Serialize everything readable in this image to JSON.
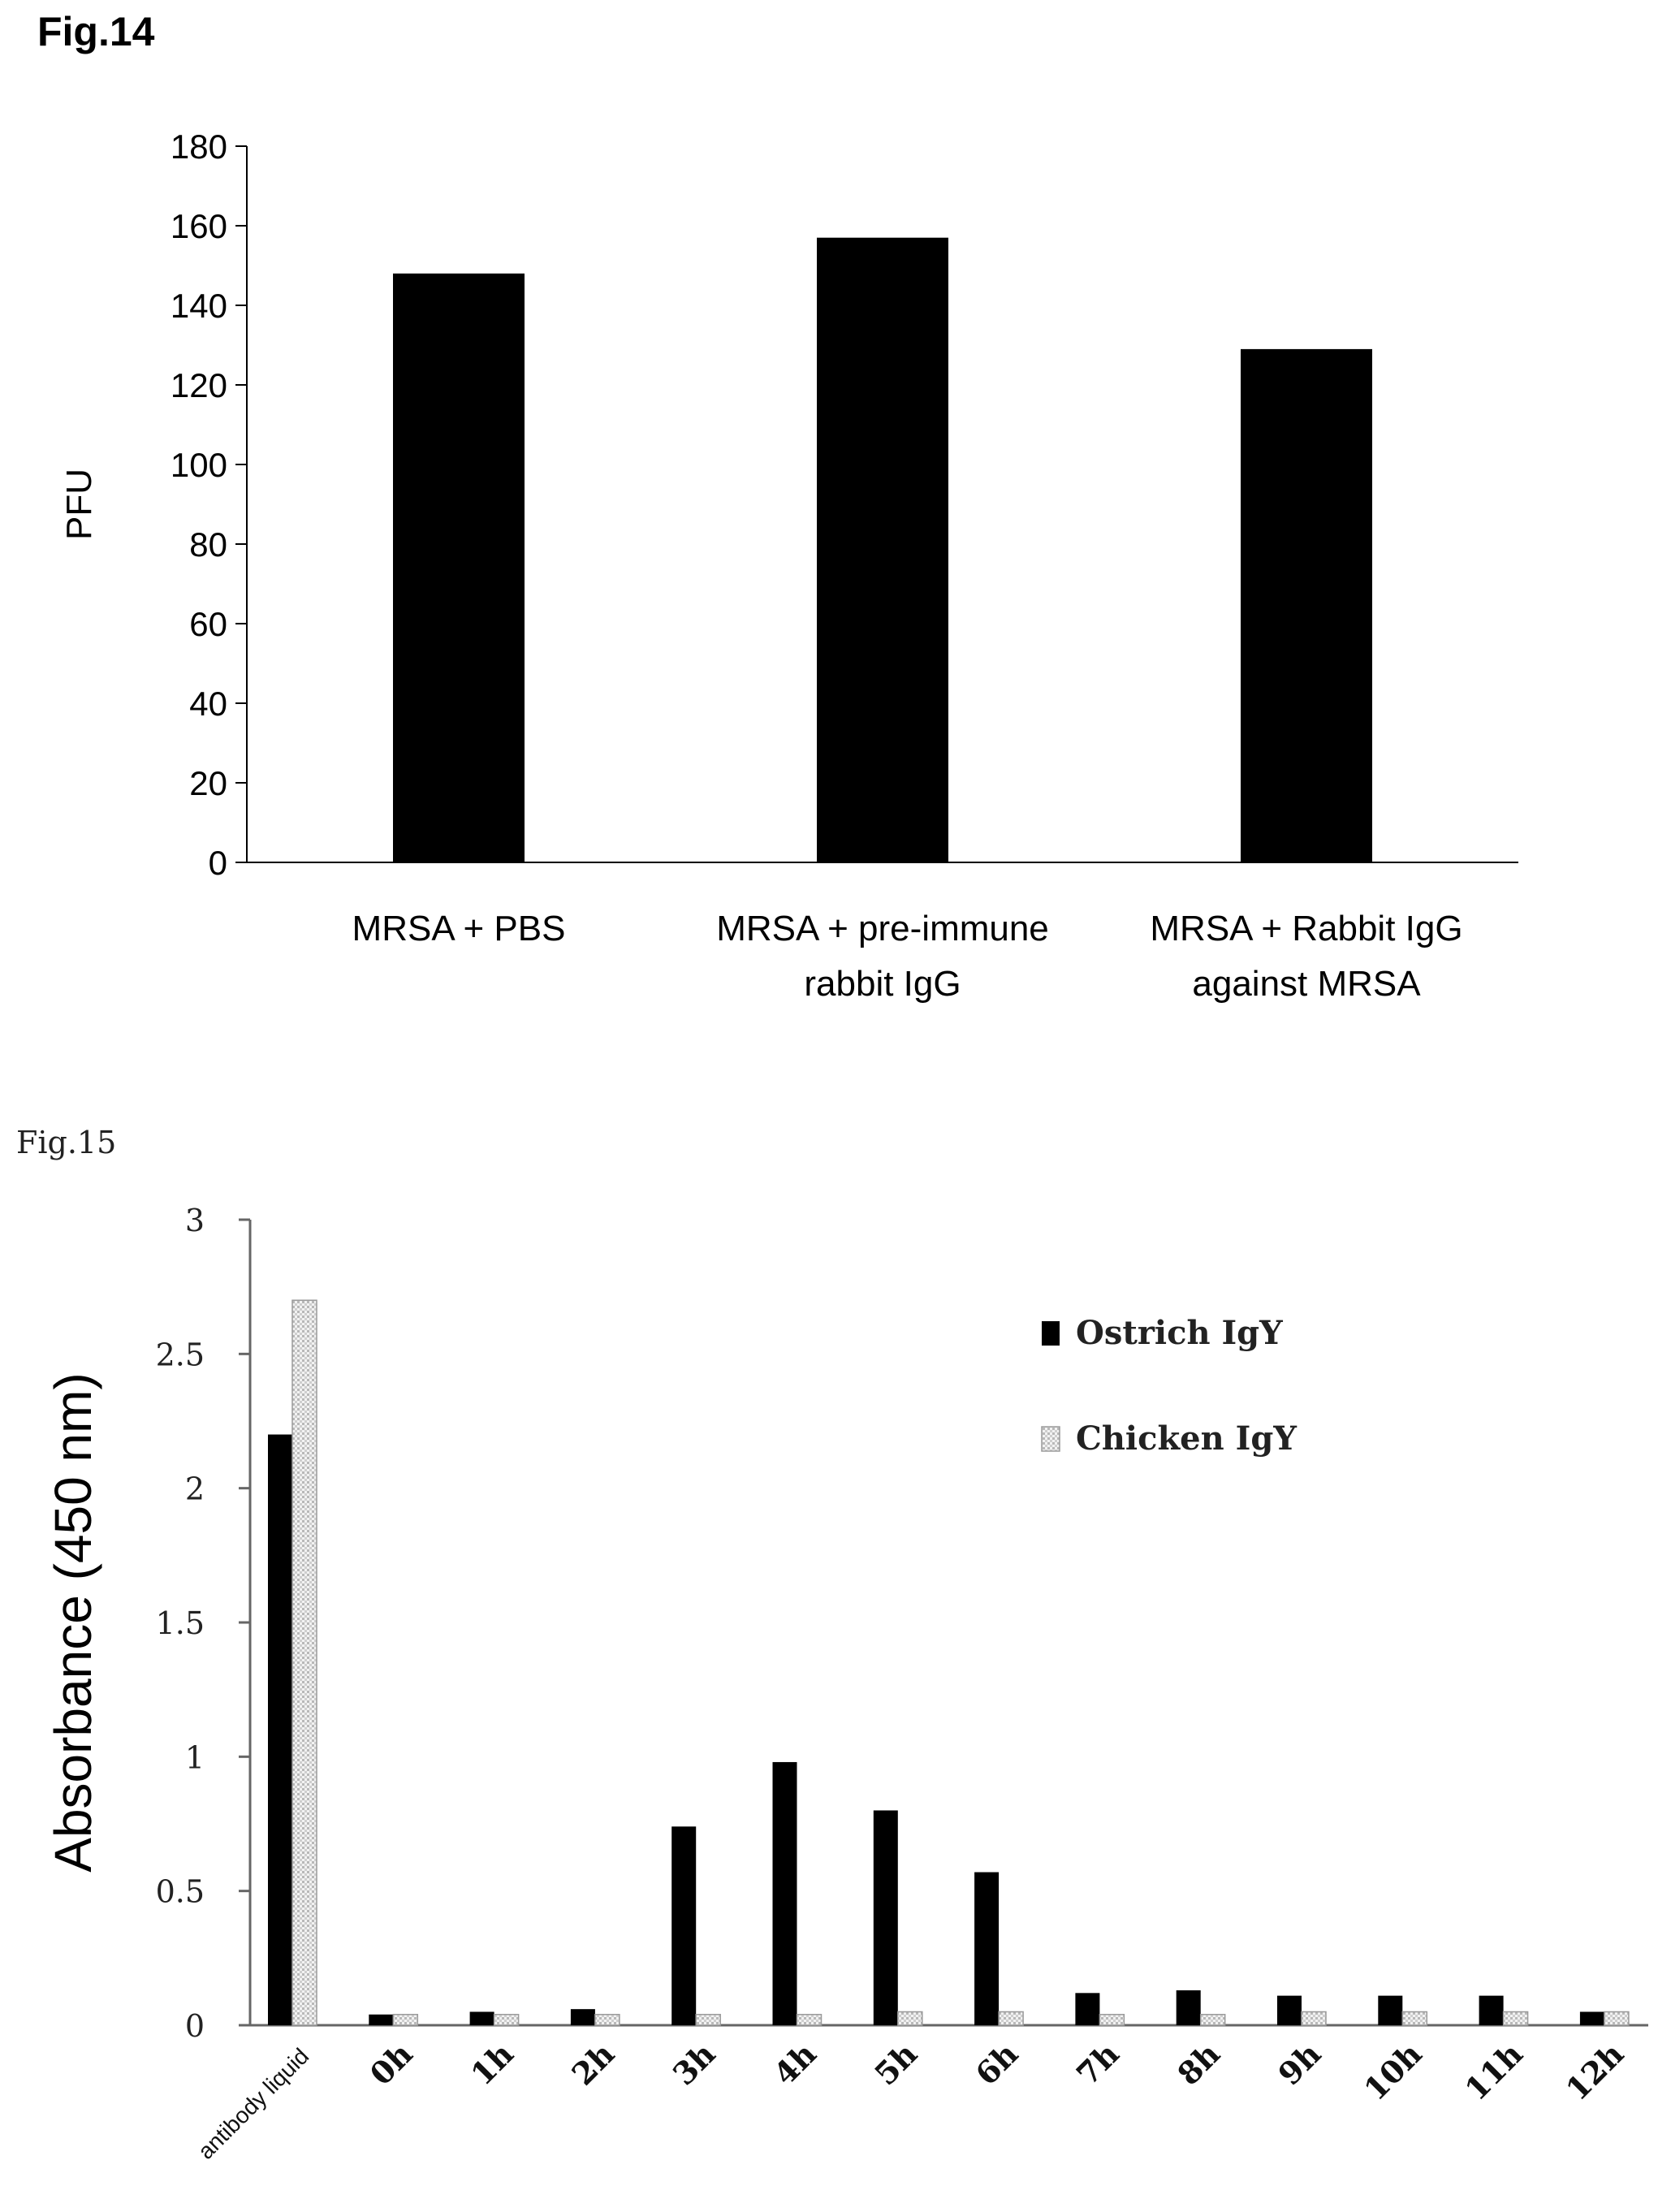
{
  "figures": {
    "fig14_label": "Fig.14",
    "fig15_label": "Fig.15"
  },
  "chart_data": [
    {
      "type": "bar",
      "title": "",
      "ylabel": "PFU",
      "xlabel": "",
      "ylim": [
        0,
        180
      ],
      "yticks": [
        0,
        20,
        40,
        60,
        80,
        100,
        120,
        140,
        160,
        180
      ],
      "categories": [
        [
          "MRSA + PBS"
        ],
        [
          "MRSA + pre-immune",
          "rabbit IgG"
        ],
        [
          "MRSA + Rabbit IgG",
          "against MRSA"
        ]
      ],
      "values": [
        148,
        157,
        129
      ],
      "bar_color": "#000000",
      "grid": false,
      "legend": "none"
    },
    {
      "type": "bar",
      "title": "",
      "ylabel": "Absorbance (450 nm)",
      "xlabel": "",
      "ylim": [
        0,
        3
      ],
      "yticks": [
        "0",
        "0.5",
        "1",
        "1.5",
        "2",
        "2.5",
        "3"
      ],
      "categories": [
        "antibody liquid",
        "0h",
        "1h",
        "2h",
        "3h",
        "4h",
        "5h",
        "6h",
        "7h",
        "8h",
        "9h",
        "10h",
        "11h",
        "12h"
      ],
      "series": [
        {
          "name": "Ostrich IgY",
          "color": "#000000",
          "values": [
            2.2,
            0.04,
            0.05,
            0.06,
            0.74,
            0.98,
            0.8,
            0.57,
            0.12,
            0.13,
            0.11,
            0.11,
            0.11,
            0.05
          ]
        },
        {
          "name": "Chicken IgY",
          "color": "#e0e0e0",
          "values": [
            2.7,
            0.04,
            0.04,
            0.04,
            0.04,
            0.04,
            0.05,
            0.05,
            0.04,
            0.04,
            0.05,
            0.05,
            0.05,
            0.05
          ]
        }
      ],
      "grid": false,
      "legend": "top-right"
    }
  ]
}
